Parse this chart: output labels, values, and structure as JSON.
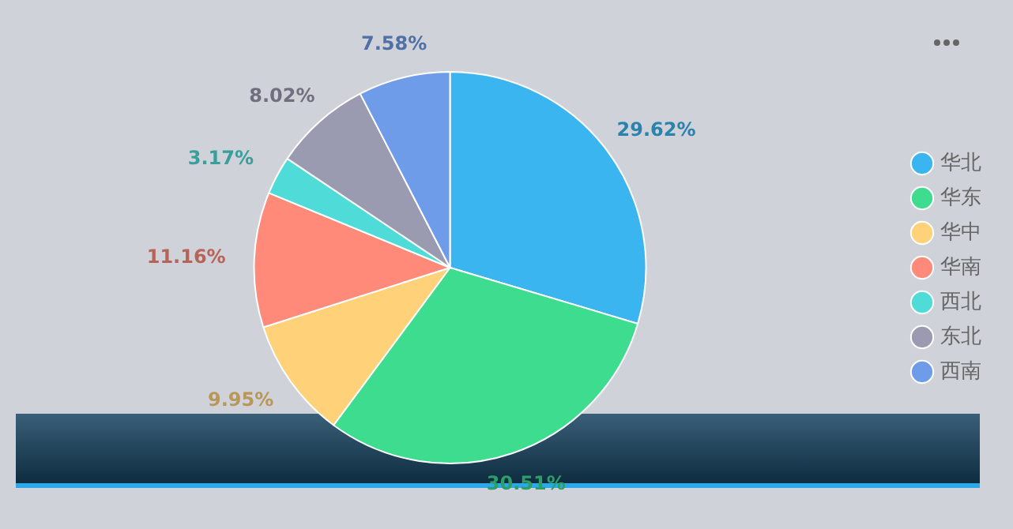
{
  "chart_data": {
    "type": "pie",
    "categories": [
      "华北",
      "华东",
      "华中",
      "华南",
      "西北",
      "东北",
      "西南"
    ],
    "values": [
      29.62,
      30.51,
      9.95,
      11.16,
      3.17,
      8.02,
      7.58
    ],
    "value_labels": [
      "29.62%",
      "30.51%",
      "9.95%",
      "11.16%",
      "3.17%",
      "8.02%",
      "7.58%"
    ],
    "colors": [
      "#3bb5f0",
      "#3edc8f",
      "#ffd27a",
      "#ff8a7a",
      "#4fdcd9",
      "#9a9ab0",
      "#6f9ce8"
    ],
    "legend": "right"
  }
}
